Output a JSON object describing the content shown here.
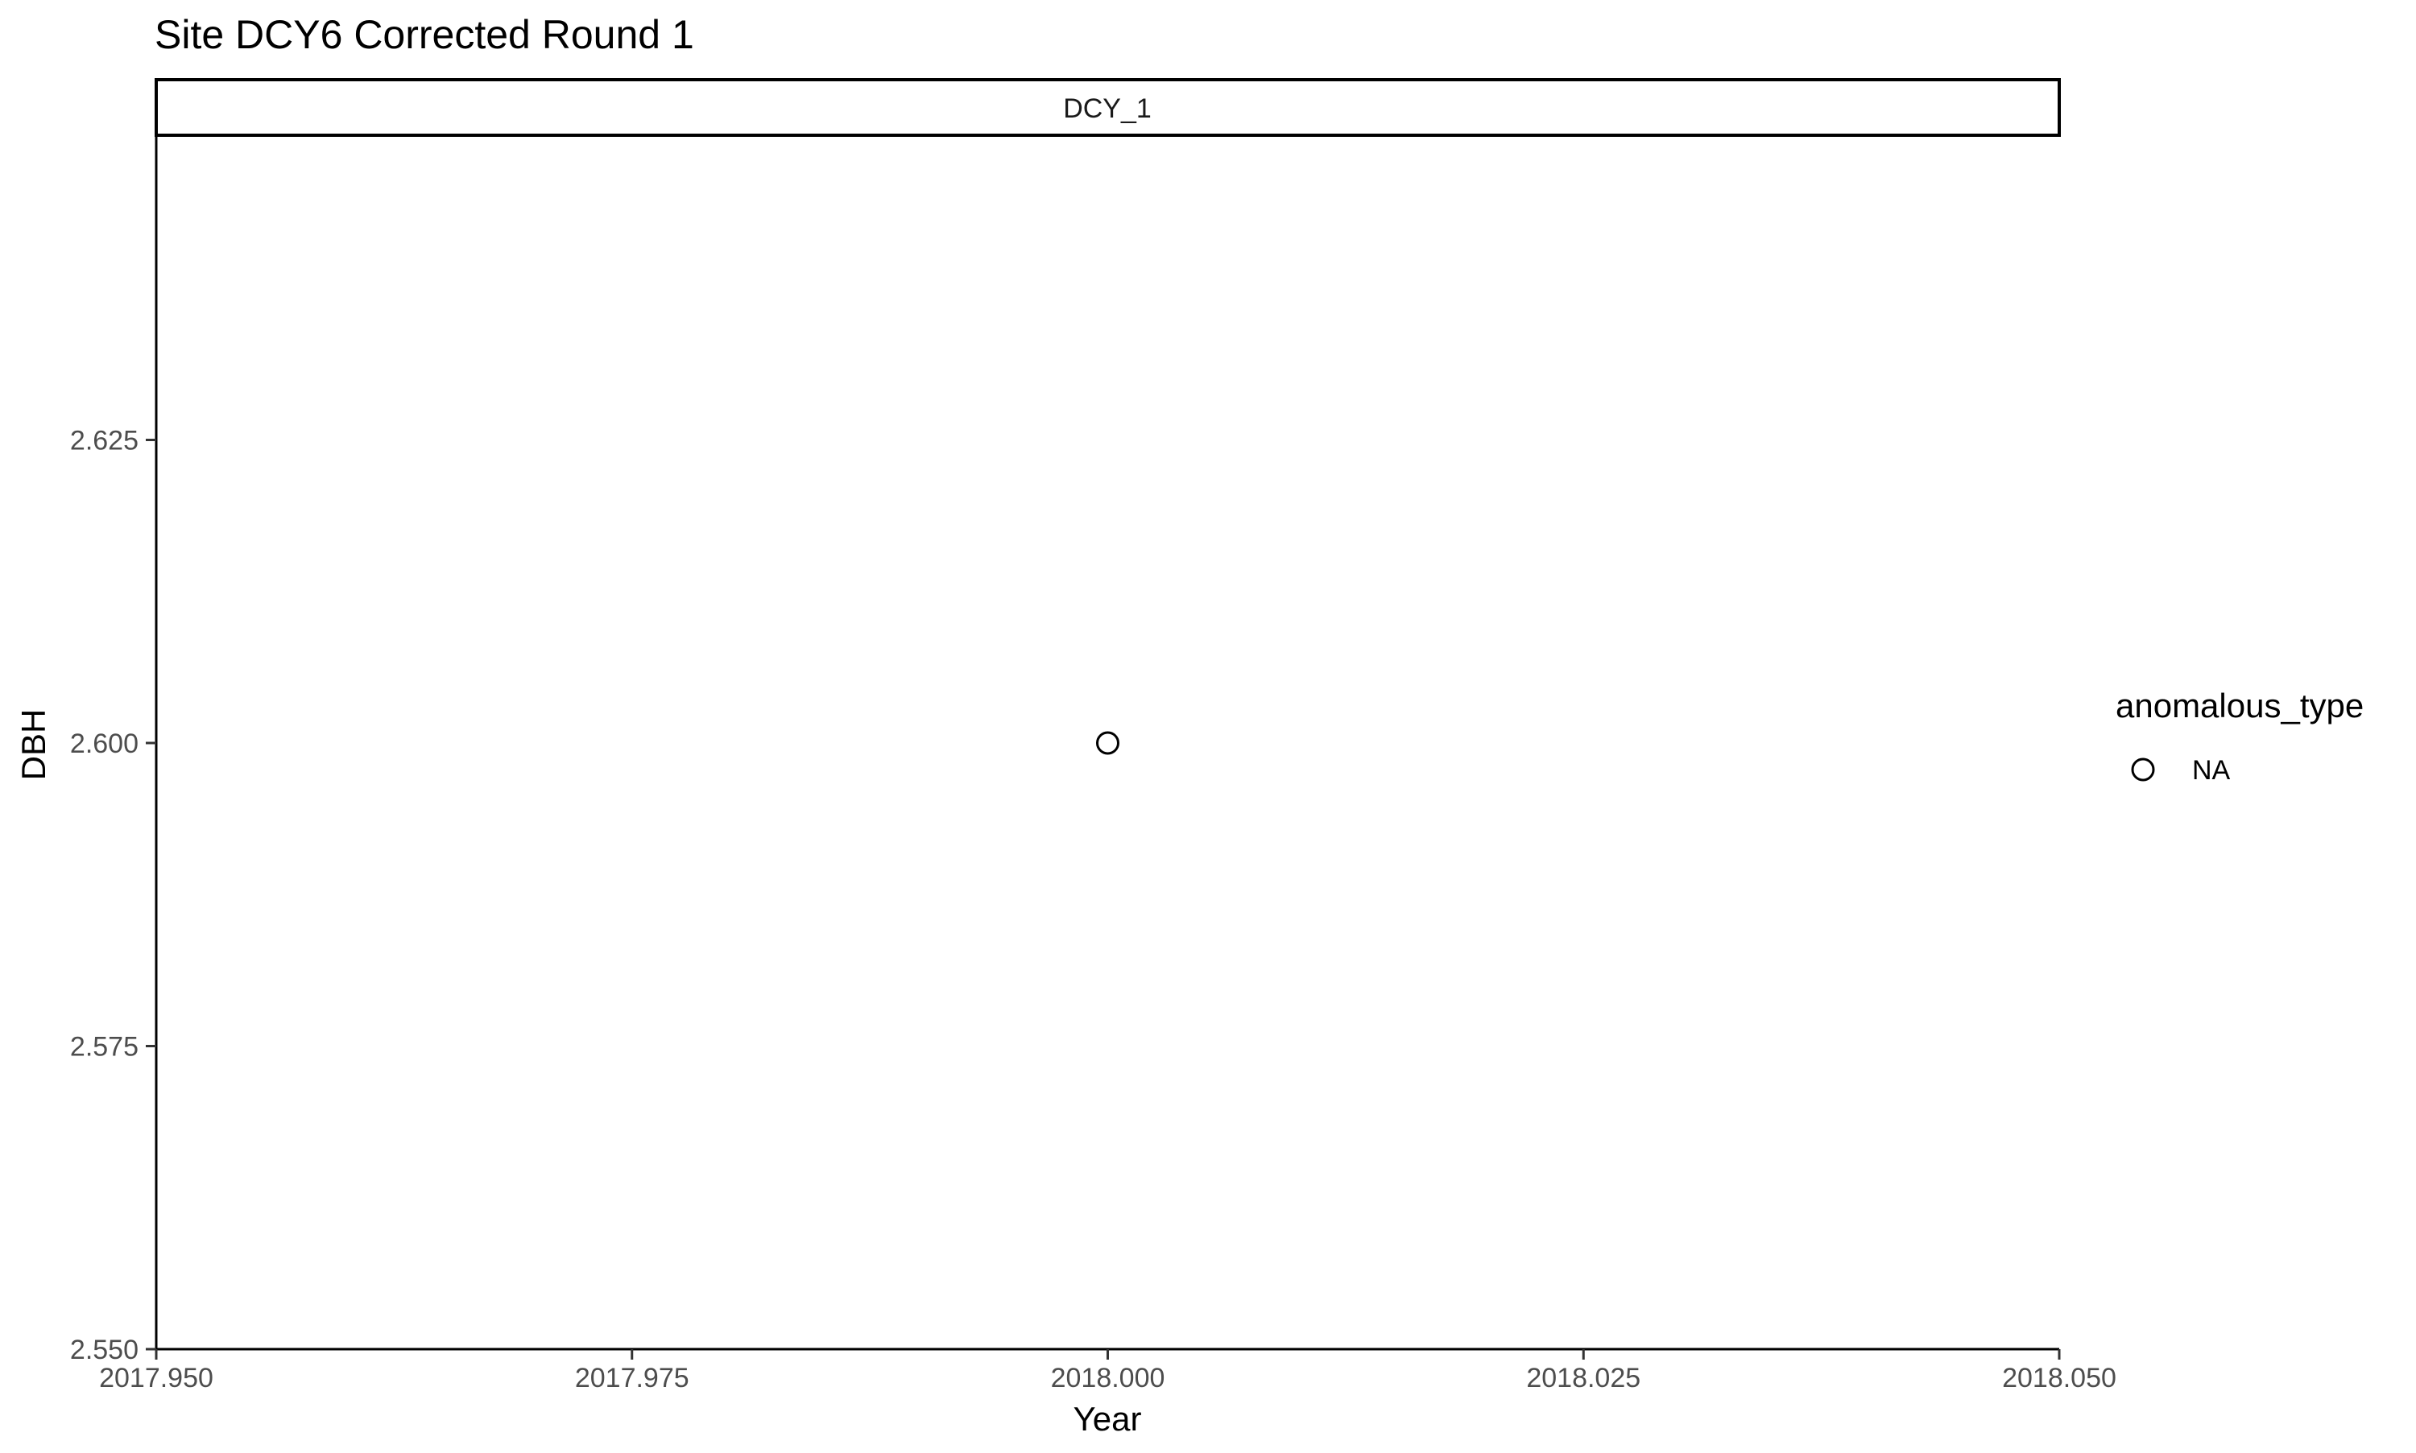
{
  "chart_data": {
    "type": "scatter",
    "title": "Site DCY6 Corrected Round 1",
    "facet_label": "DCY_1",
    "xlabel": "Year",
    "ylabel": "DBH",
    "xlim": [
      2017.95,
      2018.05
    ],
    "ylim": [
      2.55,
      2.65
    ],
    "x_ticks": [
      2017.95,
      2017.975,
      2018.0,
      2018.025,
      2018.05
    ],
    "x_tick_labels": [
      "2017.950",
      "2017.975",
      "2018.000",
      "2018.025",
      "2018.050"
    ],
    "y_ticks": [
      2.55,
      2.575,
      2.6,
      2.625
    ],
    "y_tick_labels": [
      "2.550",
      "2.575",
      "2.600",
      "2.625"
    ],
    "grid": false,
    "legend": {
      "title": "anomalous_type",
      "position": "right",
      "entries": [
        {
          "label": "NA",
          "marker": "open-circle",
          "color": "#000000"
        }
      ]
    },
    "series": [
      {
        "label": "NA",
        "marker": "open-circle",
        "color": "#000000",
        "points": [
          {
            "x": 2018.0,
            "y": 2.6
          }
        ]
      }
    ]
  }
}
